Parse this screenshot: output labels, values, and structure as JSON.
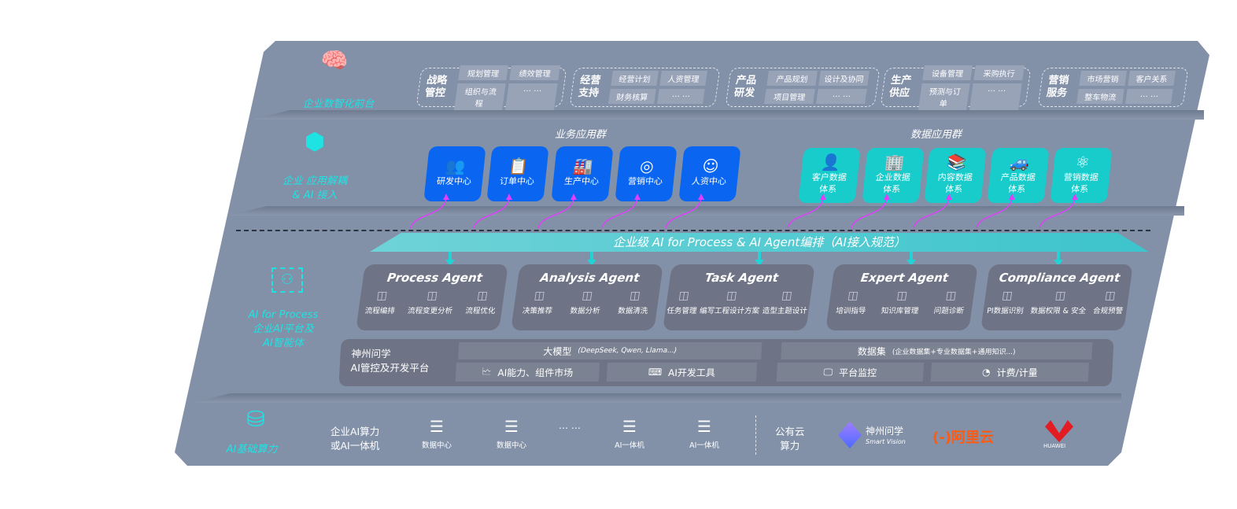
{
  "layers": {
    "front": {
      "label": "企业数智化前台",
      "icon": "brain-icon"
    },
    "apps": {
      "label_1": "企业 应用解耦",
      "label_2": "& AI 接入",
      "icon": "molecule-icon"
    },
    "ai": {
      "label_1": "AI for Process",
      "label_2": "企业AI平台及",
      "label_3": "AI智能体",
      "icon": "person-scan-icon"
    },
    "infra": {
      "label": "AI基础算力",
      "icon": "database-icon"
    }
  },
  "groups": [
    {
      "title": [
        "战略",
        "管控"
      ],
      "chips": [
        "规划管理",
        "绩效管理",
        "组织与流程",
        "… …"
      ]
    },
    {
      "title": [
        "经营",
        "支持"
      ],
      "chips": [
        "经营计划",
        "人资管理",
        "财务核算",
        "… …"
      ]
    },
    {
      "title": [
        "产品",
        "研发"
      ],
      "chips": [
        "产品规划",
        "设计及协同",
        "项目管理",
        "… …"
      ]
    },
    {
      "title": [
        "生产",
        "供应"
      ],
      "chips": [
        "设备管理",
        "采购执行",
        "预测与订单",
        "… …"
      ]
    },
    {
      "title": [
        "营销",
        "服务"
      ],
      "chips": [
        "市场营销",
        "客户关系",
        "整车物流",
        "… …"
      ]
    }
  ],
  "business_apps": {
    "title": "业务应用群",
    "items": [
      {
        "label": "研发中心",
        "icon": "team-icon"
      },
      {
        "label": "订单中心",
        "icon": "clipboard-icon"
      },
      {
        "label": "生产中心",
        "icon": "factory-icon"
      },
      {
        "label": "营销中心",
        "icon": "target-icon"
      },
      {
        "label": "人资中心",
        "icon": "user-icon"
      }
    ]
  },
  "data_apps": {
    "title": "数据应用群",
    "items": [
      {
        "label": "客户数据",
        "label2": "体系",
        "icon": "person-icon"
      },
      {
        "label": "企业数据",
        "label2": "体系",
        "icon": "building-icon"
      },
      {
        "label": "内容数据",
        "label2": "体系",
        "icon": "books-icon"
      },
      {
        "label": "产品数据",
        "label2": "体系",
        "icon": "car-icon"
      },
      {
        "label": "营销数据",
        "label2": "体系",
        "icon": "atom-icon"
      }
    ]
  },
  "orchestration": "企业级 AI for Process & AI Agent编排（AI接入规范）",
  "agents": [
    {
      "name": "Process Agent",
      "features": [
        "流程编排",
        "流程变更分析",
        "流程优化"
      ]
    },
    {
      "name": "Analysis Agent",
      "features": [
        "决策推荐",
        "数据分析",
        "数据清洗"
      ]
    },
    {
      "name": "Task Agent",
      "features": [
        "任务管理",
        "编写工程设计方案",
        "造型主题设计"
      ]
    },
    {
      "name": "Expert Agent",
      "features": [
        "培训指导",
        "知识库管理",
        "问题诊断"
      ]
    },
    {
      "name": "Compliance Agent",
      "features": [
        "PI数据识别",
        "数据权限 & 安全",
        "合规预警"
      ]
    }
  ],
  "platform": {
    "title_1": "神州问学",
    "title_2": "AI管控及开发平台",
    "model": "大模型",
    "model_note": "(DeepSeek, Qwen, Llama...)",
    "dataset": "数据集",
    "dataset_note": "(企业数据集+专业数据集+通用知识...)",
    "cells": [
      "AI能力、组件市场",
      "AI开发工具",
      "平台监控",
      "计费/计量"
    ]
  },
  "infra": {
    "label_1": "企业AI算力",
    "label_2": "或AI一体机",
    "servers": [
      "数据中心",
      "数据中心",
      "AI一体机",
      "AI一体机"
    ],
    "ellipsis": "… …",
    "cloud_1": "公有云",
    "cloud_2": "算力",
    "vendors": [
      "神州问学",
      "Smart Vision",
      "阿里云",
      "HUAWEI"
    ]
  },
  "colors": {
    "panel": "#8290a8",
    "accent": "#1fe3e3",
    "blue": "#0a66f0",
    "teal": "#19cccc",
    "arrow": "#e040fb"
  }
}
